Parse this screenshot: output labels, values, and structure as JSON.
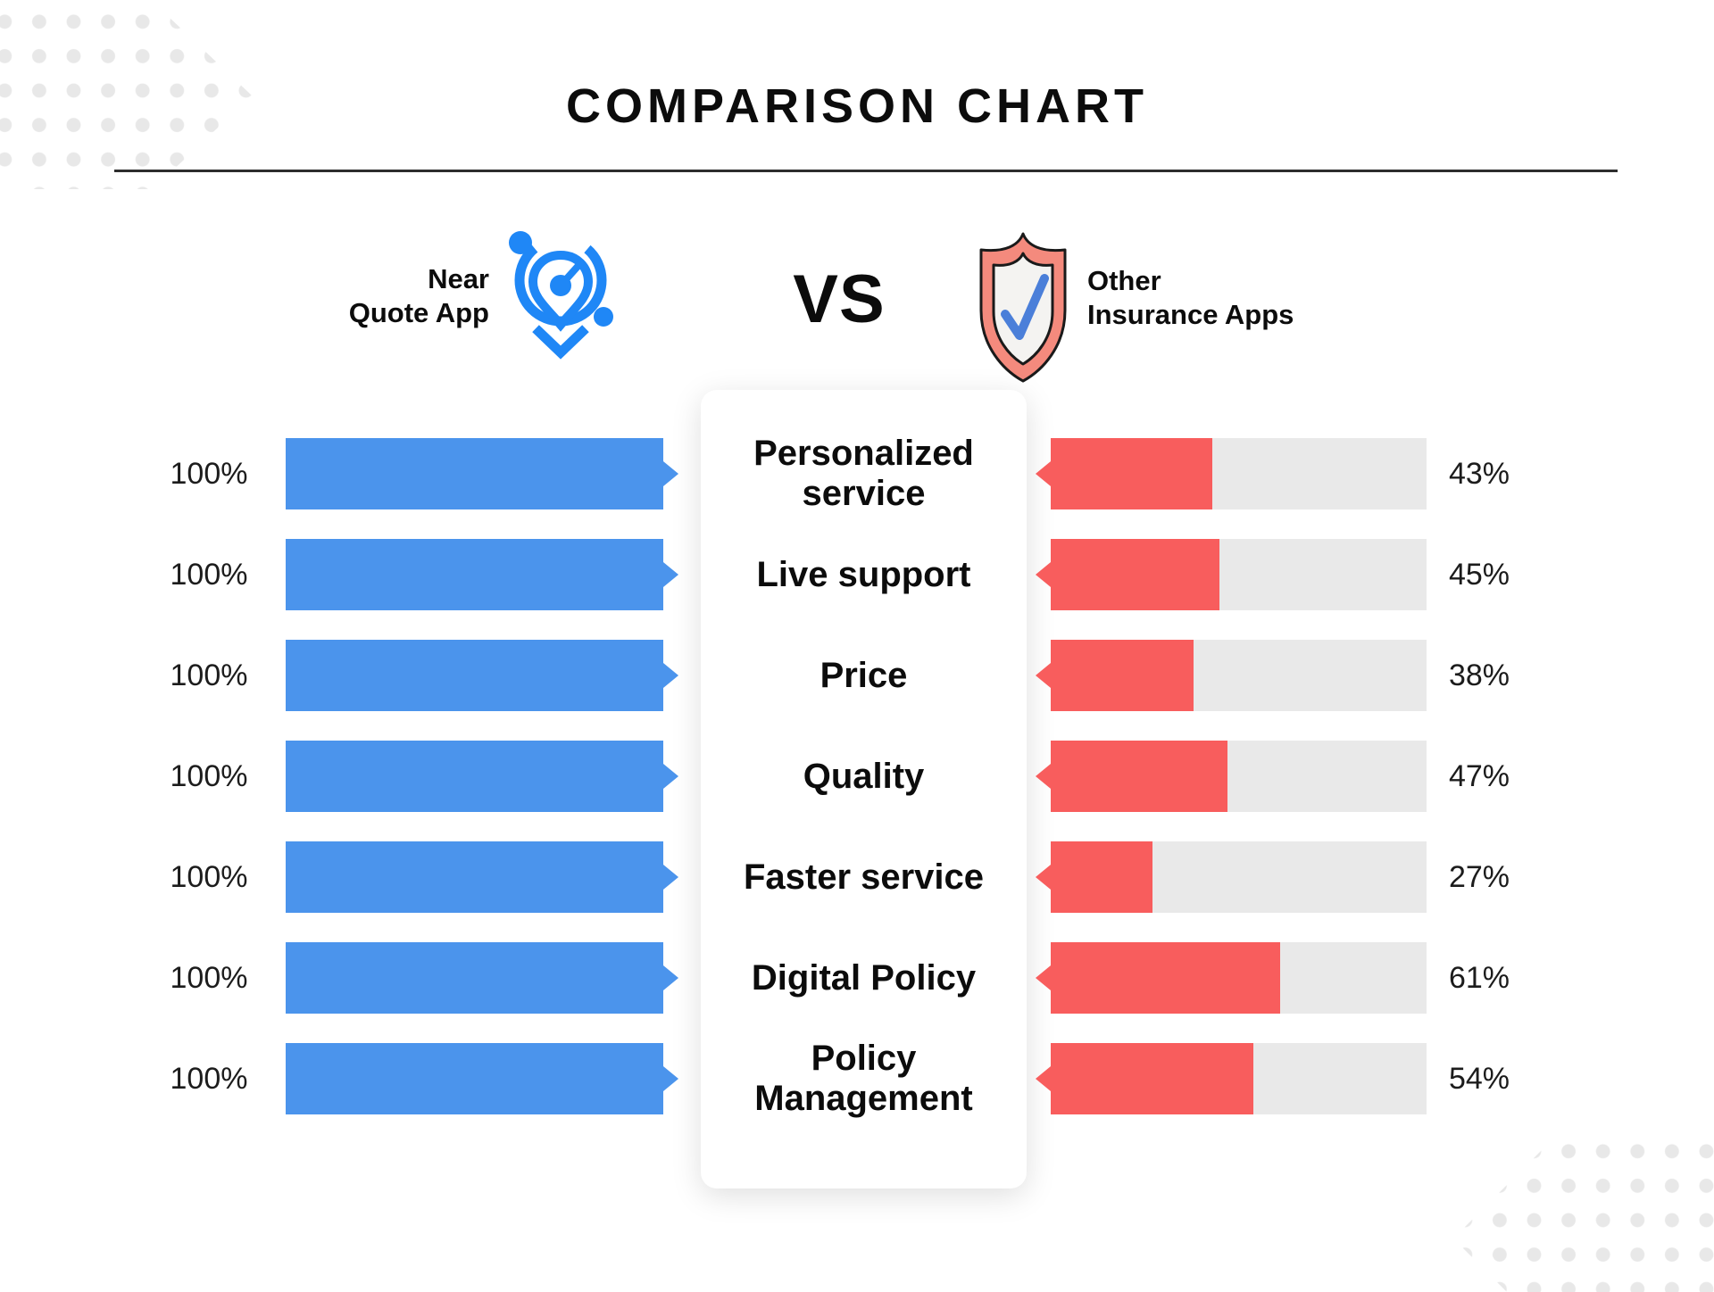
{
  "title": "COMPARISON CHART",
  "header": {
    "left_app_line1": "Near",
    "left_app_line2": "Quote App",
    "left_logo_icon": "location-pin-network-icon",
    "vs_label": "VS",
    "right_logo_icon": "shield-check-icon",
    "right_app_line1": "Other",
    "right_app_line2": "Insurance Apps"
  },
  "colors": {
    "near_quote_bar": "#4b94ec",
    "logo_blue": "#1f87f6",
    "other_apps_bar": "#f85d5d",
    "track_gray": "#e9e9e9",
    "shield_salmon": "#f48a7d",
    "check_blue": "#4b7fd9",
    "text": "#0c0c0c",
    "corner_dots": "#e8e8e8"
  },
  "chart_data": {
    "type": "bar",
    "title": "COMPARISON CHART",
    "orientation": "horizontal-mirrored",
    "categories": [
      "Personalized service",
      "Live support",
      "Price",
      "Quality",
      "Faster service",
      "Digital Policy",
      "Policy Management"
    ],
    "series": [
      {
        "name": "Near Quote App",
        "values": [
          100,
          100,
          100,
          100,
          100,
          100,
          100
        ]
      },
      {
        "name": "Other Insurance Apps",
        "values": [
          43,
          45,
          38,
          47,
          27,
          61,
          54
        ]
      }
    ],
    "value_format": "percent",
    "xlim": [
      0,
      100
    ],
    "grid": false,
    "legend_position": "top"
  },
  "rows": [
    {
      "label": "Personalized service",
      "left_value": "100%",
      "left_pct": 100,
      "right_value": "43%",
      "right_pct": 43
    },
    {
      "label": "Live support",
      "left_value": "100%",
      "left_pct": 100,
      "right_value": "45%",
      "right_pct": 45
    },
    {
      "label": "Price",
      "left_value": "100%",
      "left_pct": 100,
      "right_value": "38%",
      "right_pct": 38
    },
    {
      "label": "Quality",
      "left_value": "100%",
      "left_pct": 100,
      "right_value": "47%",
      "right_pct": 47
    },
    {
      "label": "Faster service",
      "left_value": "100%",
      "left_pct": 100,
      "right_value": "27%",
      "right_pct": 27
    },
    {
      "label": "Digital Policy",
      "left_value": "100%",
      "left_pct": 100,
      "right_value": "61%",
      "right_pct": 61
    },
    {
      "label": "Policy Management",
      "left_value": "100%",
      "left_pct": 100,
      "right_value": "54%",
      "right_pct": 54
    }
  ]
}
